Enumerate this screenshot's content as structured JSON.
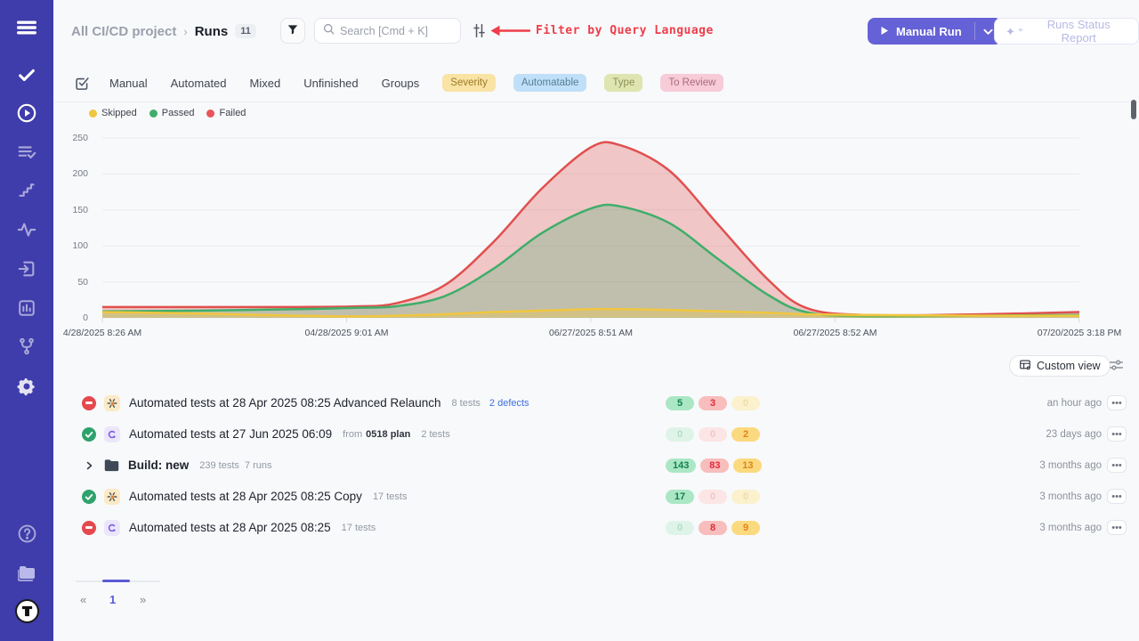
{
  "colors": {
    "sidebar": "#3f3cab",
    "accent": "#6561d6",
    "failed": "#e0504e",
    "passed": "#3fae6a",
    "skipped": "#f0c63f",
    "annotation": "#ef3d49"
  },
  "header": {
    "breadcrumb": {
      "project": "All CI/CD project",
      "separator": "›",
      "page": "Runs",
      "count": "11"
    },
    "search_placeholder": "Search [Cmd + K]",
    "annotation": "Filter by Query Language",
    "manual_run_label": "Manual Run",
    "report_label": "Runs Status Report"
  },
  "filters": {
    "tabs": [
      "Manual",
      "Automated",
      "Mixed",
      "Unfinished",
      "Groups"
    ],
    "chips": [
      {
        "label": "Severity"
      },
      {
        "label": "Automatable"
      },
      {
        "label": "Type"
      },
      {
        "label": "To Review"
      }
    ]
  },
  "chart_data": {
    "type": "area",
    "title": "",
    "legend": [
      "Skipped",
      "Passed",
      "Failed"
    ],
    "legend_position": "top-left",
    "grid": "horizontal",
    "ylim": [
      0,
      250
    ],
    "y_ticks": [
      0,
      50,
      100,
      150,
      200,
      250
    ],
    "x_ticks": [
      "4/28/2025 8:26 AM",
      "04/28/2025 9:01 AM",
      "06/27/2025 8:51 AM",
      "06/27/2025 8:52 AM",
      "07/20/2025 3:18 PM"
    ],
    "x": [
      0,
      0.1,
      0.2,
      0.26,
      0.3,
      0.35,
      0.4,
      0.45,
      0.5,
      0.53,
      0.58,
      0.63,
      0.68,
      0.72,
      0.78,
      0.9,
      1.0
    ],
    "series": [
      {
        "name": "Failed",
        "color": "#e0504e",
        "fill": "rgba(224,80,78,0.30)",
        "values": [
          15,
          15,
          15,
          16,
          20,
          45,
          105,
          180,
          237,
          240,
          205,
          130,
          55,
          14,
          4,
          5,
          8
        ]
      },
      {
        "name": "Passed",
        "color": "#3fae6a",
        "fill": "rgba(63,174,106,0.28)",
        "values": [
          9,
          10,
          12,
          14,
          16,
          30,
          68,
          118,
          152,
          155,
          132,
          82,
          33,
          8,
          2,
          3,
          4
        ]
      },
      {
        "name": "Skipped",
        "color": "#f0c63f",
        "fill": "rgba(240,198,63,0.35)",
        "values": [
          8,
          6,
          3,
          2,
          3,
          5,
          8,
          10,
          12,
          12,
          11,
          9,
          7,
          5,
          4,
          3,
          3
        ]
      }
    ]
  },
  "list": {
    "custom_view_label": "Custom view",
    "rows": [
      {
        "status": "failed",
        "icon": "automation",
        "title": "Automated tests at 28 Apr 2025 08:25 Advanced Relaunch",
        "meta": {
          "tests": "8 tests",
          "defects": "2 defects"
        },
        "counts": {
          "passed": "5",
          "failed": "3",
          "skipped": "0"
        },
        "time": "an hour ago"
      },
      {
        "status": "passed",
        "icon": "qase",
        "title": "Automated tests at 27 Jun 2025 06:09",
        "meta": {
          "from": "from",
          "plan": "0518 plan",
          "tests": "2 tests"
        },
        "counts": {
          "passed": "0",
          "failed": "0",
          "skipped": "2"
        },
        "time": "23 days ago"
      },
      {
        "status": "group",
        "icon": "folder",
        "title": "Build: new",
        "meta": {
          "tests": "239 tests",
          "runs": "7 runs"
        },
        "counts": {
          "passed": "143",
          "failed": "83",
          "skipped": "13"
        },
        "time": "3 months ago"
      },
      {
        "status": "passed",
        "icon": "automation",
        "title": "Automated tests at 28 Apr 2025 08:25 Copy",
        "meta": {
          "tests": "17 tests"
        },
        "counts": {
          "passed": "17",
          "failed": "0",
          "skipped": "0"
        },
        "time": "3 months ago"
      },
      {
        "status": "failed",
        "icon": "qase",
        "title": "Automated tests at 28 Apr 2025 08:25",
        "meta": {
          "tests": "17 tests"
        },
        "counts": {
          "passed": "0",
          "failed": "8",
          "skipped": "9"
        },
        "time": "3 months ago"
      }
    ],
    "pagination": {
      "prev": "«",
      "page": "1",
      "next": "»"
    }
  }
}
